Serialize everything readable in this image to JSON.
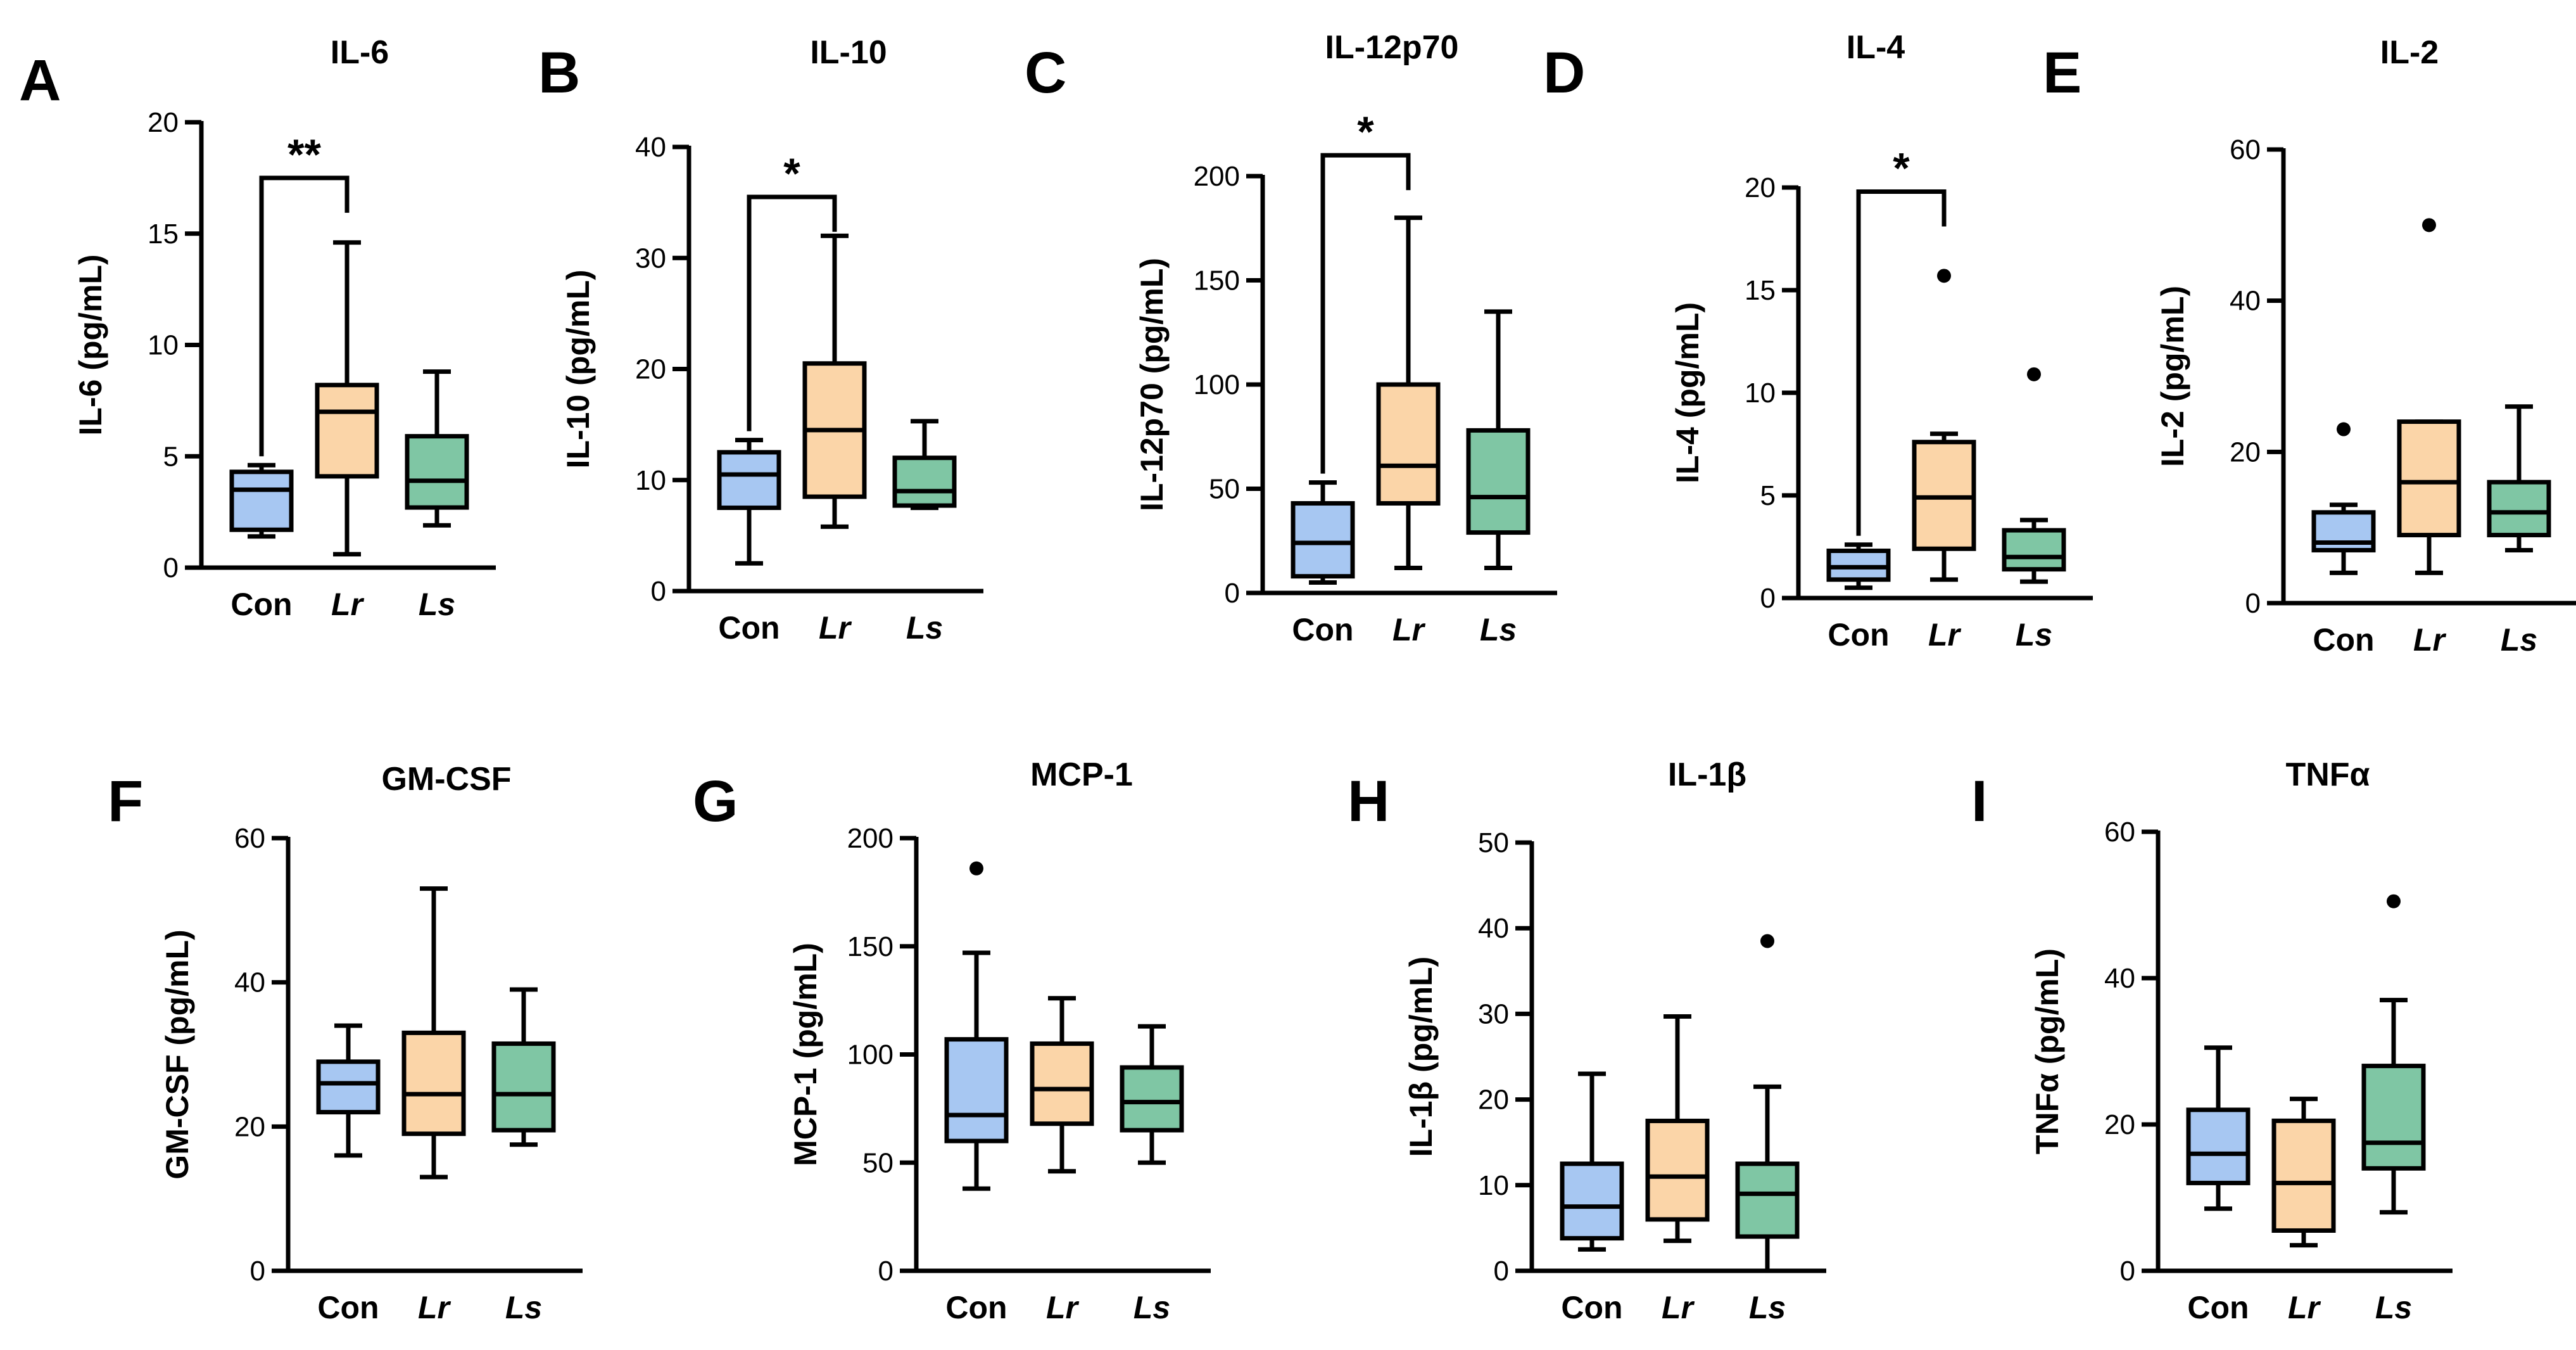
{
  "colors": {
    "Con": "#a7c7f2",
    "Lr": "#fbd5a8",
    "Ls": "#7fc6a4",
    "stroke": "#000000"
  },
  "chart_data": [
    {
      "type": "box",
      "letter": "A",
      "title": "IL-6",
      "ylabel": "IL-6 (pg/mL)",
      "ylim": [
        0,
        20
      ],
      "yticks": [
        0,
        5,
        10,
        15,
        20
      ],
      "categories": [
        "Con",
        "Lr",
        "Ls"
      ],
      "boxes": [
        {
          "min": 1.4,
          "q1": 1.7,
          "median": 3.5,
          "q3": 4.3,
          "max": 4.6,
          "outliers": []
        },
        {
          "min": 0.6,
          "q1": 4.1,
          "median": 7.0,
          "q3": 8.2,
          "max": 14.6,
          "outliers": []
        },
        {
          "min": 1.9,
          "q1": 2.7,
          "median": 3.9,
          "q3": 5.9,
          "max": 8.8,
          "outliers": []
        }
      ],
      "significance": [
        {
          "from": 0,
          "to": 1,
          "label": "**",
          "at": 17.5
        }
      ]
    },
    {
      "type": "box",
      "letter": "B",
      "title": "IL-10",
      "ylabel": "IL-10 (pg/mL)",
      "ylim": [
        0,
        40
      ],
      "yticks": [
        0,
        10,
        20,
        30,
        40
      ],
      "categories": [
        "Con",
        "Lr",
        "Ls"
      ],
      "boxes": [
        {
          "min": 2.5,
          "q1": 7.5,
          "median": 10.5,
          "q3": 12.5,
          "max": 13.6,
          "outliers": []
        },
        {
          "min": 5.8,
          "q1": 8.5,
          "median": 14.5,
          "q3": 20.5,
          "max": 32.0,
          "outliers": []
        },
        {
          "min": 7.5,
          "q1": 7.7,
          "median": 9.0,
          "q3": 12.0,
          "max": 15.3,
          "outliers": []
        }
      ],
      "significance": [
        {
          "from": 0,
          "to": 1,
          "label": "*",
          "at": 35.5
        }
      ]
    },
    {
      "type": "box",
      "letter": "C",
      "title": "IL-12p70",
      "ylabel": "IL-12p70 (pg/mL)",
      "ylim": [
        0,
        200
      ],
      "yticks": [
        0,
        50,
        100,
        150,
        200
      ],
      "categories": [
        "Con",
        "Lr",
        "Ls"
      ],
      "boxes": [
        {
          "min": 5,
          "q1": 8,
          "median": 24,
          "q3": 43,
          "max": 53,
          "outliers": []
        },
        {
          "min": 12,
          "q1": 43,
          "median": 61,
          "q3": 100,
          "max": 180,
          "outliers": []
        },
        {
          "min": 12,
          "q1": 29,
          "median": 46,
          "q3": 78,
          "max": 135,
          "outliers": []
        }
      ],
      "significance": [
        {
          "from": 0,
          "to": 1,
          "label": "*",
          "at": 210
        }
      ]
    },
    {
      "type": "box",
      "letter": "D",
      "title": "IL-4",
      "ylabel": "IL-4 (pg/mL)",
      "ylim": [
        0,
        20
      ],
      "yticks": [
        0,
        5,
        10,
        15,
        20
      ],
      "categories": [
        "Con",
        "Lr",
        "Ls"
      ],
      "boxes": [
        {
          "min": 0.5,
          "q1": 0.9,
          "median": 1.5,
          "q3": 2.3,
          "max": 2.6,
          "outliers": []
        },
        {
          "min": 0.9,
          "q1": 2.4,
          "median": 4.9,
          "q3": 7.6,
          "max": 8.0,
          "outliers": [
            15.7
          ]
        },
        {
          "min": 0.8,
          "q1": 1.4,
          "median": 2.0,
          "q3": 3.3,
          "max": 3.8,
          "outliers": [
            10.9
          ]
        }
      ],
      "significance": [
        {
          "from": 0,
          "to": 1,
          "label": "*",
          "at": 19.8
        }
      ]
    },
    {
      "type": "box",
      "letter": "E",
      "title": "IL-2",
      "ylabel": "IL-2 (pg/mL)",
      "ylim": [
        0,
        60
      ],
      "yticks": [
        0,
        20,
        40,
        60
      ],
      "categories": [
        "Con",
        "Lr",
        "Ls"
      ],
      "boxes": [
        {
          "min": 4,
          "q1": 7,
          "median": 8,
          "q3": 12,
          "max": 13,
          "outliers": [
            23
          ]
        },
        {
          "min": 4,
          "q1": 9,
          "median": 16,
          "q3": 24,
          "max": 24,
          "outliers": [
            50
          ]
        },
        {
          "min": 7,
          "q1": 9,
          "median": 12,
          "q3": 16,
          "max": 26,
          "outliers": []
        }
      ],
      "significance": []
    },
    {
      "type": "box",
      "letter": "F",
      "title": "GM-CSF",
      "ylabel": "GM-CSF (pg/mL)",
      "ylim": [
        0,
        60
      ],
      "yticks": [
        0,
        20,
        40,
        60
      ],
      "categories": [
        "Con",
        "Lr",
        "Ls"
      ],
      "boxes": [
        {
          "min": 16,
          "q1": 22,
          "median": 26,
          "q3": 29,
          "max": 34,
          "outliers": []
        },
        {
          "min": 13,
          "q1": 19,
          "median": 24.5,
          "q3": 33,
          "max": 53,
          "outliers": []
        },
        {
          "min": 17.5,
          "q1": 19.5,
          "median": 24.5,
          "q3": 31.5,
          "max": 39,
          "outliers": []
        }
      ],
      "significance": []
    },
    {
      "type": "box",
      "letter": "G",
      "title": "MCP-1",
      "ylabel": "MCP-1 (pg/mL)",
      "ylim": [
        0,
        200
      ],
      "yticks": [
        0,
        50,
        100,
        150,
        200
      ],
      "categories": [
        "Con",
        "Lr",
        "Ls"
      ],
      "boxes": [
        {
          "min": 38,
          "q1": 60,
          "median": 72,
          "q3": 107,
          "max": 147,
          "outliers": [
            186
          ]
        },
        {
          "min": 46,
          "q1": 68,
          "median": 84,
          "q3": 105,
          "max": 126,
          "outliers": []
        },
        {
          "min": 50,
          "q1": 65,
          "median": 78,
          "q3": 94,
          "max": 113,
          "outliers": []
        }
      ],
      "significance": []
    },
    {
      "type": "box",
      "letter": "H",
      "title": "IL-1β",
      "ylabel": "IL-1β (pg/mL)",
      "ylim": [
        0,
        50
      ],
      "yticks": [
        0,
        10,
        20,
        30,
        40,
        50
      ],
      "categories": [
        "Con",
        "Lr",
        "Ls"
      ],
      "boxes": [
        {
          "min": 2.5,
          "q1": 3.8,
          "median": 7.5,
          "q3": 12.5,
          "max": 23,
          "outliers": []
        },
        {
          "min": 3.5,
          "q1": 6,
          "median": 11,
          "q3": 17.5,
          "max": 29.7,
          "outliers": []
        },
        {
          "min": 0,
          "q1": 4,
          "median": 9,
          "q3": 12.5,
          "max": 21.5,
          "outliers": [
            38.5
          ]
        }
      ],
      "significance": []
    },
    {
      "type": "box",
      "letter": "I",
      "title": "TNFα",
      "ylabel": "TNFα (pg/mL)",
      "ylim": [
        0,
        60
      ],
      "yticks": [
        0,
        20,
        40,
        60
      ],
      "categories": [
        "Con",
        "Lr",
        "Ls"
      ],
      "boxes": [
        {
          "min": 8.5,
          "q1": 12,
          "median": 16,
          "q3": 22,
          "max": 30.5,
          "outliers": []
        },
        {
          "min": 3.5,
          "q1": 5.5,
          "median": 12,
          "q3": 20.5,
          "max": 23.5,
          "outliers": []
        },
        {
          "min": 8,
          "q1": 14,
          "median": 17.5,
          "q3": 28,
          "max": 37,
          "outliers": [
            50.5
          ]
        }
      ],
      "significance": []
    }
  ]
}
